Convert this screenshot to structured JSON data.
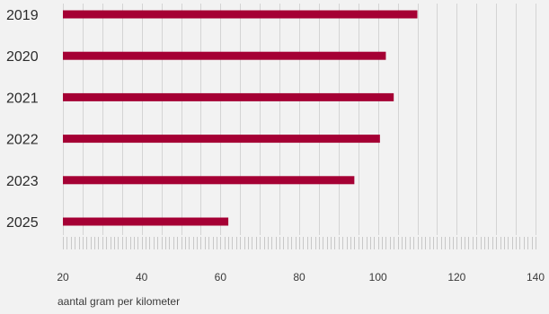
{
  "chart_data": {
    "type": "bar",
    "orientation": "horizontal",
    "title": "",
    "categories": [
      "2019",
      "2020",
      "2021",
      "2022",
      "2023",
      "2025"
    ],
    "values": [
      110,
      102,
      104,
      100.5,
      94,
      62
    ],
    "series": [
      {
        "values": [
          110,
          102,
          104,
          100.5,
          94,
          62
        ]
      }
    ],
    "xlabel": "aantal gram per kilometer",
    "ylabel": "",
    "xlim": [
      20,
      140
    ],
    "xticks": [
      20,
      40,
      60,
      80,
      100,
      120,
      140
    ],
    "tick_labels": [
      "20",
      "40",
      "60",
      "80",
      "100",
      "120",
      "140"
    ],
    "grid": true,
    "legend": "none",
    "bar_color": "#a50034",
    "grid_color": "#d4d4d4",
    "background": "#f2f2f2"
  }
}
